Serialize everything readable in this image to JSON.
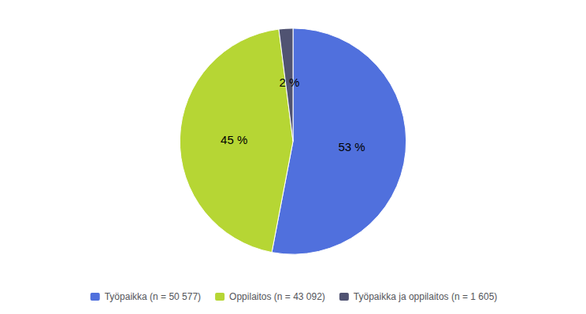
{
  "chart_data": {
    "type": "pie",
    "categories": [
      "Työpaikka (n = 50 577)",
      "Oppilaitos (n = 43 092)",
      "Työpaikka ja oppilaitos (n = 1 605)"
    ],
    "values": [
      53,
      45,
      2
    ],
    "value_labels": [
      "53 %",
      "45 %",
      "2 %"
    ],
    "data_labels": true,
    "legend": "bottom"
  }
}
